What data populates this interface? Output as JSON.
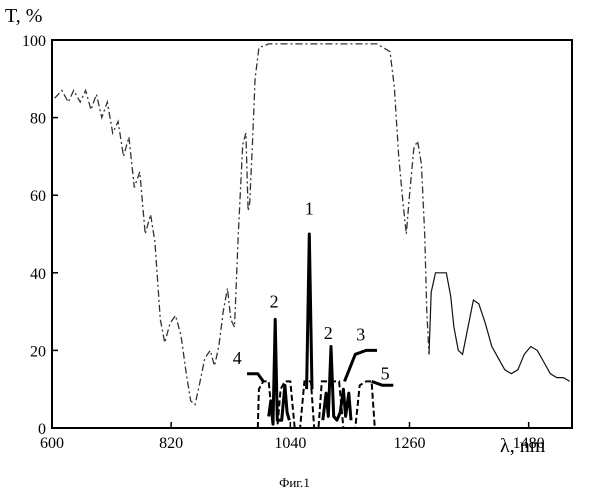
{
  "chart_data": {
    "type": "line",
    "ylabel": "T, %",
    "xlabel": "λ, nm",
    "xlim": [
      600,
      1560
    ],
    "ylim": [
      0,
      100
    ],
    "x_ticks": [
      600,
      820,
      1040,
      1260,
      1480
    ],
    "y_ticks": [
      0,
      20,
      40,
      60,
      80,
      100
    ],
    "caption": "Фиг.1",
    "curve_labels": [
      {
        "text": "1",
        "x": 1075,
        "y": 55
      },
      {
        "text": "2",
        "x": 1010,
        "y": 31
      },
      {
        "text": "2",
        "x": 1110,
        "y": 23
      },
      {
        "text": "3",
        "x": 1170,
        "y": 22.5
      },
      {
        "text": "4",
        "x": 942,
        "y": 16.5
      },
      {
        "text": "5",
        "x": 1215,
        "y": 12.5
      }
    ],
    "series": [
      {
        "style": "dash-dot",
        "points": [
          [
            605,
            85
          ],
          [
            618,
            87
          ],
          [
            630,
            84
          ],
          [
            640,
            87
          ],
          [
            652,
            84
          ],
          [
            662,
            87
          ],
          [
            672,
            82
          ],
          [
            682,
            86
          ],
          [
            692,
            80
          ],
          [
            702,
            84
          ],
          [
            712,
            76
          ],
          [
            722,
            79
          ],
          [
            732,
            70
          ],
          [
            742,
            75
          ],
          [
            752,
            62
          ],
          [
            762,
            66
          ],
          [
            772,
            50
          ],
          [
            782,
            55
          ],
          [
            790,
            48
          ],
          [
            800,
            28
          ],
          [
            808,
            22
          ],
          [
            818,
            27
          ],
          [
            828,
            29
          ],
          [
            838,
            24
          ],
          [
            848,
            14
          ],
          [
            856,
            7
          ],
          [
            864,
            6
          ],
          [
            872,
            11
          ],
          [
            882,
            18
          ],
          [
            892,
            20
          ],
          [
            900,
            16
          ],
          [
            908,
            21
          ],
          [
            916,
            30
          ],
          [
            924,
            36
          ],
          [
            930,
            28
          ],
          [
            937,
            26
          ],
          [
            944,
            50
          ],
          [
            952,
            73
          ],
          [
            958,
            76
          ],
          [
            962,
            56
          ],
          [
            965,
            58
          ],
          [
            970,
            73
          ],
          [
            975,
            90
          ],
          [
            982,
            98
          ],
          [
            1000,
            99
          ],
          [
            1100,
            99
          ],
          [
            1200,
            99
          ],
          [
            1224,
            97
          ],
          [
            1232,
            88
          ],
          [
            1240,
            70
          ],
          [
            1248,
            58
          ],
          [
            1254,
            50
          ],
          [
            1260,
            60
          ],
          [
            1268,
            72
          ],
          [
            1275,
            74
          ],
          [
            1282,
            68
          ],
          [
            1288,
            50
          ],
          [
            1292,
            30
          ],
          [
            1296,
            19
          ]
        ]
      },
      {
        "style": "solid-thin",
        "points": [
          [
            1296,
            19
          ],
          [
            1300,
            35
          ],
          [
            1308,
            40
          ],
          [
            1318,
            40
          ],
          [
            1328,
            40
          ],
          [
            1336,
            34
          ],
          [
            1342,
            26
          ],
          [
            1350,
            20
          ],
          [
            1358,
            19
          ],
          [
            1368,
            26
          ],
          [
            1378,
            33
          ],
          [
            1388,
            32
          ],
          [
            1400,
            27
          ],
          [
            1412,
            21
          ],
          [
            1424,
            18
          ],
          [
            1436,
            15
          ],
          [
            1448,
            14
          ],
          [
            1460,
            15
          ],
          [
            1472,
            19
          ],
          [
            1484,
            21
          ],
          [
            1496,
            20
          ],
          [
            1508,
            17
          ],
          [
            1520,
            14
          ],
          [
            1532,
            13
          ],
          [
            1544,
            13
          ],
          [
            1556,
            12
          ]
        ]
      },
      {
        "style": "solid-thick",
        "points": [
          [
            1070,
            10
          ],
          [
            1075,
            50
          ],
          [
            1080,
            10
          ]
        ]
      },
      {
        "style": "solid-thick",
        "points": [
          [
            1000,
            3
          ],
          [
            1004,
            7
          ],
          [
            1008,
            1
          ],
          [
            1012,
            28
          ],
          [
            1016,
            2
          ],
          [
            1024,
            2
          ],
          [
            1030,
            11
          ],
          [
            1034,
            4
          ],
          [
            1038,
            2
          ]
        ]
      },
      {
        "style": "solid-thick",
        "points": [
          [
            1100,
            2
          ],
          [
            1106,
            9
          ],
          [
            1110,
            3
          ],
          [
            1115,
            21
          ],
          [
            1120,
            3
          ],
          [
            1126,
            2
          ],
          [
            1132,
            4
          ],
          [
            1138,
            10
          ],
          [
            1142,
            3
          ],
          [
            1148,
            9
          ],
          [
            1152,
            2
          ]
        ]
      },
      {
        "style": "dashed",
        "points": [
          [
            980,
            0
          ],
          [
            982,
            10
          ],
          [
            990,
            12
          ],
          [
            1000,
            12
          ],
          [
            1008,
            0
          ],
          [
            1016,
            0
          ],
          [
            1022,
            10
          ],
          [
            1030,
            12
          ],
          [
            1040,
            12
          ],
          [
            1048,
            0
          ],
          [
            1058,
            0
          ],
          [
            1066,
            12
          ],
          [
            1078,
            12
          ],
          [
            1084,
            0
          ],
          [
            1092,
            0
          ],
          [
            1098,
            12
          ],
          [
            1130,
            12
          ],
          [
            1138,
            0
          ],
          [
            1160,
            0
          ],
          [
            1168,
            11
          ],
          [
            1180,
            12
          ],
          [
            1190,
            12
          ],
          [
            1196,
            0
          ]
        ]
      },
      {
        "style": "solid-thick",
        "points": [
          [
            960,
            14
          ],
          [
            980,
            14
          ],
          [
            990,
            12
          ]
        ]
      },
      {
        "style": "solid-thick",
        "points": [
          [
            1140,
            12
          ],
          [
            1160,
            19
          ],
          [
            1180,
            20
          ],
          [
            1200,
            20
          ]
        ]
      },
      {
        "style": "solid-thick",
        "points": [
          [
            1190,
            12
          ],
          [
            1210,
            11
          ],
          [
            1230,
            11
          ]
        ]
      }
    ]
  }
}
